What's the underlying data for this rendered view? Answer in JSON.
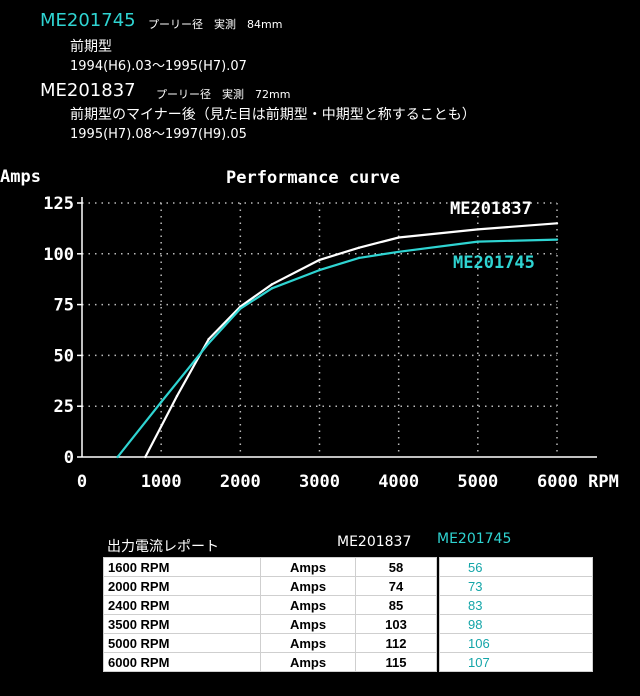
{
  "header": {
    "block1": {
      "model": "ME201745",
      "pulley": "プーリー径　実測　84mm",
      "line1": "前期型",
      "line2": "1994(H6).03〜1995(H7).07"
    },
    "block2": {
      "model": "ME201837",
      "pulley": "プーリー径　実測　72mm",
      "line1": "前期型のマイナー後（見た目は前期型・中期型と称することも）",
      "line2": "1995(H7).08〜1997(H9).05"
    }
  },
  "colors": {
    "me201745": "#2fd4d2",
    "me201837": "#ffffff"
  },
  "chart_data": {
    "type": "line",
    "title": "Performance curve",
    "ylabel": "Amps",
    "xlabel": "RPM",
    "xlim": [
      0,
      6000
    ],
    "ylim": [
      0,
      125
    ],
    "x_ticks": [
      0,
      1000,
      2000,
      3000,
      4000,
      5000,
      6000
    ],
    "x_tick_labels": [
      "0",
      "1000",
      "2000",
      "3000",
      "4000",
      "5000",
      "6000 RPM"
    ],
    "y_ticks": [
      0,
      25,
      50,
      75,
      100,
      125
    ],
    "grid": true,
    "series": [
      {
        "name": "ME201837",
        "color": "#ffffff",
        "x": [
          800,
          1200,
          1600,
          2000,
          2400,
          3000,
          3500,
          4000,
          5000,
          6000
        ],
        "y": [
          0,
          30,
          58,
          74,
          85,
          97,
          103,
          108,
          112,
          115
        ]
      },
      {
        "name": "ME201745",
        "color": "#2fd4d2",
        "x": [
          450,
          1000,
          1600,
          2000,
          2400,
          3000,
          3500,
          4000,
          5000,
          6000
        ],
        "y": [
          0,
          27,
          56,
          73,
          83,
          92,
          98,
          101,
          106,
          107
        ]
      }
    ]
  },
  "report": {
    "title": "出力電流レポート",
    "col_me201837": "ME201837",
    "col_me201745": "ME201745",
    "rows": [
      {
        "rpm": "1600 RPM",
        "unit": "Amps",
        "me201837": "58",
        "me201745": "56"
      },
      {
        "rpm": "2000 RPM",
        "unit": "Amps",
        "me201837": "74",
        "me201745": "73"
      },
      {
        "rpm": "2400 RPM",
        "unit": "Amps",
        "me201837": "85",
        "me201745": "83"
      },
      {
        "rpm": "3500 RPM",
        "unit": "Amps",
        "me201837": "103",
        "me201745": "98"
      },
      {
        "rpm": "5000 RPM",
        "unit": "Amps",
        "me201837": "112",
        "me201745": "106"
      },
      {
        "rpm": "6000 RPM",
        "unit": "Amps",
        "me201837": "115",
        "me201745": "107"
      }
    ]
  }
}
